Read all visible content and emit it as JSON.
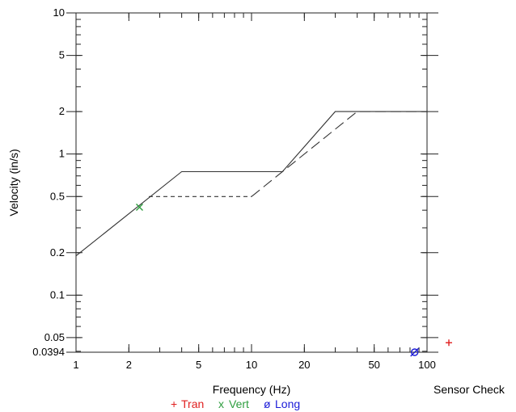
{
  "chart_data": {
    "type": "line",
    "xlabel": "Frequency (Hz)",
    "ylabel": "Velocity (in/s)",
    "x_scale": "log",
    "y_scale": "log",
    "xlim": [
      1,
      100
    ],
    "ylim": [
      0.0394,
      10
    ],
    "x_ticks": [
      1,
      2,
      5,
      10,
      20,
      50,
      100
    ],
    "x_tick_labels": [
      "1",
      "2",
      "5",
      "10",
      "20",
      "50",
      "100"
    ],
    "y_ticks": [
      10,
      5,
      2,
      1,
      0.5,
      0.2,
      0.1,
      0.05,
      0.0394
    ],
    "y_tick_labels": [
      "10",
      "5",
      "2",
      "1",
      "0.5",
      "0.2",
      "0.1",
      "0.05",
      "0.0394"
    ],
    "grid": false,
    "series": [
      {
        "style": "solid",
        "color": "#333333",
        "x": [
          1,
          4,
          15,
          30,
          100
        ],
        "y": [
          0.19,
          0.75,
          0.75,
          2,
          2
        ]
      },
      {
        "style": "short-dash",
        "color": "#333333",
        "x": [
          2.6,
          10
        ],
        "y": [
          0.5,
          0.5
        ]
      },
      {
        "style": "long-dash",
        "color": "#333333",
        "x": [
          10,
          40,
          100
        ],
        "y": [
          0.5,
          2,
          2
        ]
      }
    ],
    "markers": [
      {
        "symbol": "x",
        "label": "Vert",
        "color": "#2e9e3f",
        "x": 2.3,
        "y": 0.42
      },
      {
        "symbol": "ø",
        "label": "Long",
        "color": "#1a1ad8",
        "x": 85,
        "y": 0.0394
      }
    ],
    "sensor_check": {
      "label": "Sensor Check",
      "marker": {
        "symbol": "+",
        "color": "#e02020",
        "y": 0.046
      }
    },
    "legend": [
      {
        "symbol": "+",
        "label": "Tran",
        "color": "#e02020"
      },
      {
        "symbol": "x",
        "label": "Vert",
        "color": "#2e9e3f"
      },
      {
        "symbol": "ø",
        "label": "Long",
        "color": "#1a1ad8"
      }
    ]
  }
}
